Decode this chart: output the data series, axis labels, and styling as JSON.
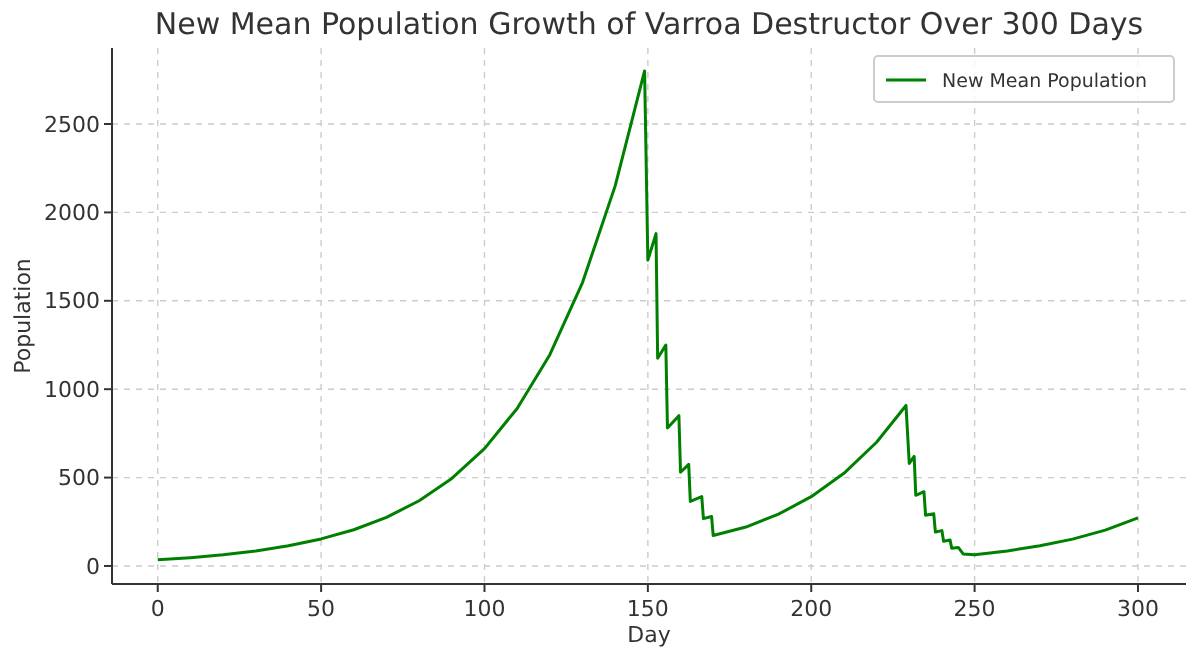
{
  "chart_data": {
    "type": "line",
    "title": "New Mean Population Growth of Varroa Destructor Over 300 Days",
    "xlabel": "Day",
    "ylabel": "Population",
    "xlim": [
      -14,
      314.7
    ],
    "ylim": [
      -102,
      2930
    ],
    "xticks": [
      0,
      50,
      100,
      150,
      200,
      250,
      300
    ],
    "yticks": [
      0,
      500,
      1000,
      1500,
      2000,
      2500
    ],
    "grid": true,
    "legend": "top right",
    "line_style": "solid",
    "marker": "none",
    "series": [
      {
        "name": "New Mean Population",
        "color": "#008000",
        "x": [
          0,
          10,
          20,
          30,
          40,
          50,
          60,
          70,
          80,
          90,
          100,
          110,
          120,
          130,
          140,
          149,
          150,
          152.5,
          153,
          155.5,
          156,
          159.5,
          160,
          162.5,
          163,
          166.5,
          167,
          169.5,
          170,
          180,
          190,
          200,
          210,
          220,
          229,
          230,
          231.5,
          232,
          234.5,
          235,
          237.5,
          238,
          240,
          240.5,
          242.5,
          243,
          245,
          246.5,
          250,
          260,
          270,
          280,
          290,
          300
        ],
        "values": [
          35,
          47,
          63,
          85,
          114,
          153,
          205,
          275,
          369,
          495,
          664,
          891,
          1195,
          1603,
          2150,
          2800,
          1730,
          1880,
          1175,
          1250,
          780,
          850,
          530,
          575,
          365,
          392,
          268,
          280,
          172,
          220,
          293,
          392,
          524,
          700,
          908,
          580,
          620,
          400,
          420,
          287,
          295,
          192,
          200,
          140,
          147,
          100,
          105,
          68,
          64,
          85,
          114,
          152,
          203,
          272
        ]
      }
    ]
  }
}
